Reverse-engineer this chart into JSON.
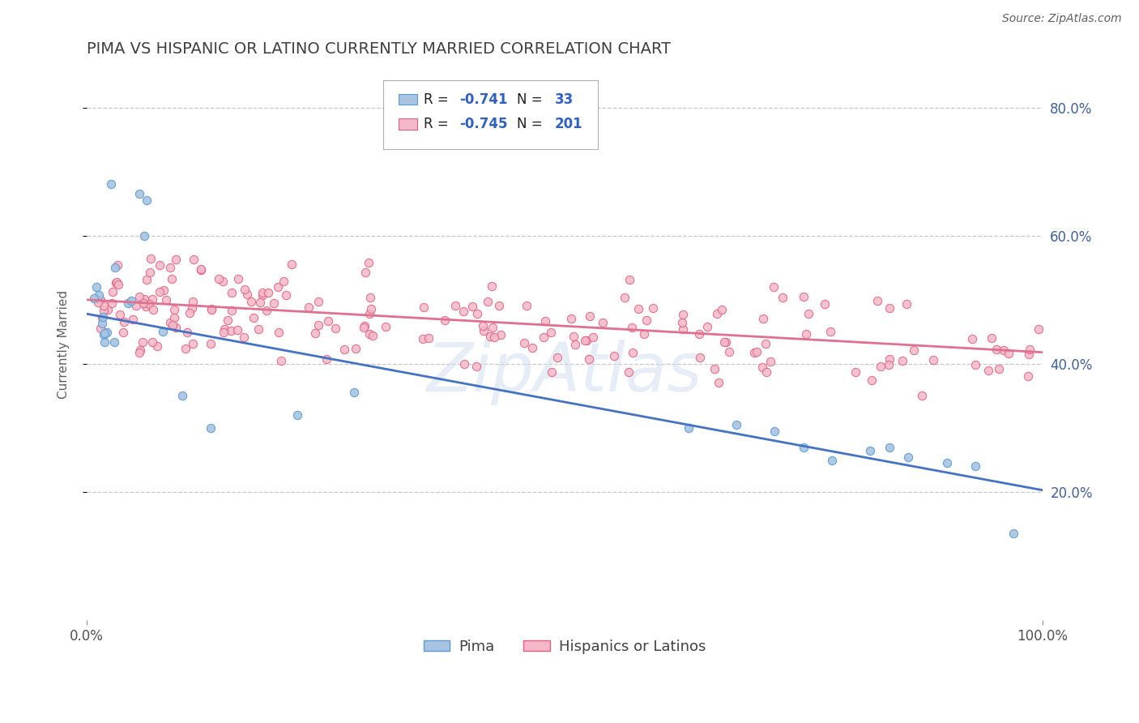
{
  "title": "PIMA VS HISPANIC OR LATINO CURRENTLY MARRIED CORRELATION CHART",
  "source_text": "Source: ZipAtlas.com",
  "ylabel": "Currently Married",
  "xlim": [
    0.0,
    1.0
  ],
  "ylim": [
    0.0,
    0.86
  ],
  "xtick_labels": [
    "0.0%",
    "100.0%"
  ],
  "ytick_positions": [
    0.2,
    0.4,
    0.6,
    0.8
  ],
  "ytick_labels_right": [
    "20.0%",
    "40.0%",
    "60.0%",
    "80.0%"
  ],
  "pima_color": "#a8c4e0",
  "pima_edge_color": "#5b9bd5",
  "hispanic_color": "#f4b8c8",
  "hispanic_edge_color": "#e06080",
  "pima_R": -0.741,
  "pima_N": 33,
  "hispanic_R": -0.745,
  "hispanic_N": 201,
  "pima_line_color": "#4472c4",
  "hispanic_line_color": "#e07090",
  "pima_intercept": 0.478,
  "pima_slope": -0.275,
  "hispanic_intercept": 0.5,
  "hispanic_slope": -0.082,
  "legend_label_pima": "Pima",
  "legend_label_hispanic": "Hispanics or Latinos",
  "watermark": "ZipAtlas",
  "background_color": "#ffffff",
  "grid_color": "#c8c8c8",
  "title_color": "#404040",
  "legend_text_color": "#3060c0",
  "source_color": "#606060"
}
